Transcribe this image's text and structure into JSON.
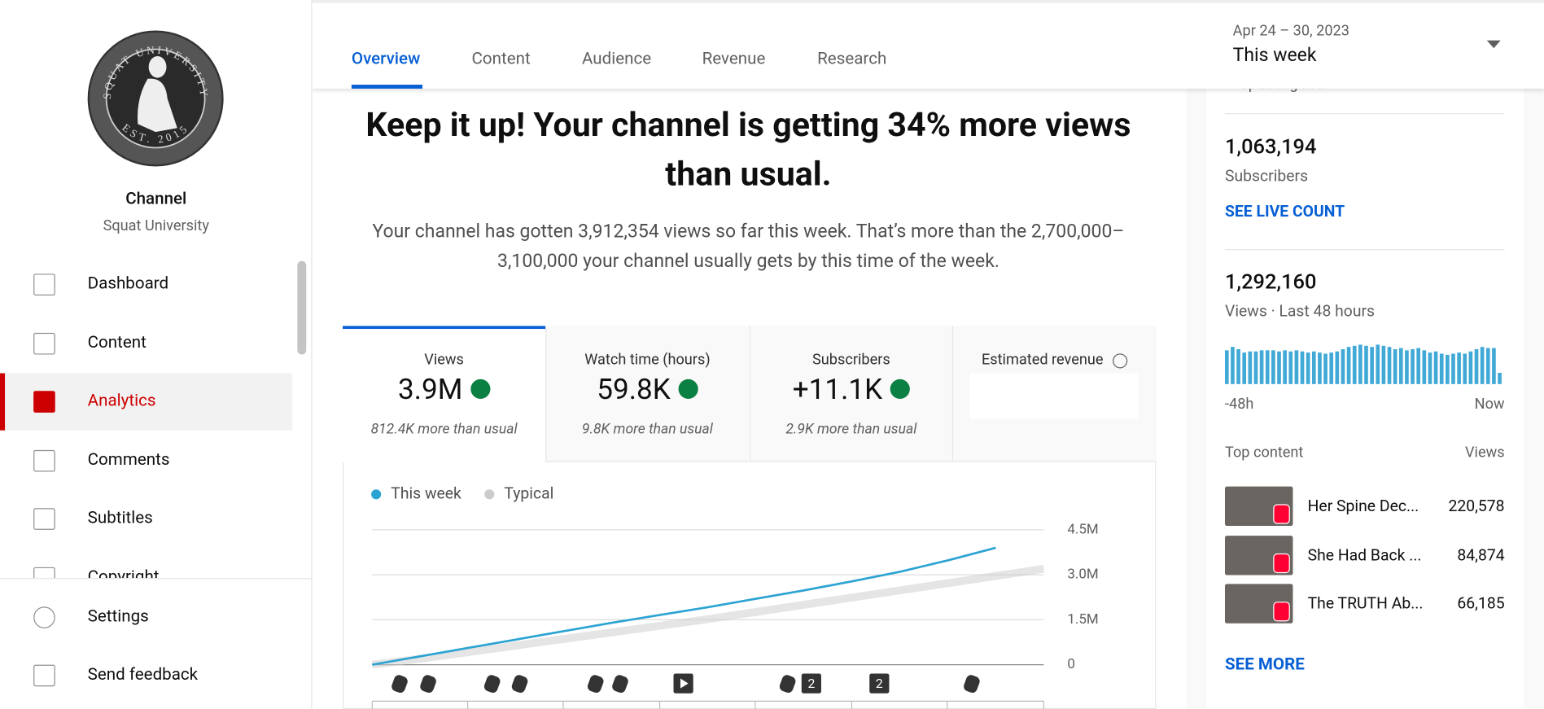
{
  "sidebar": {
    "channel_label": "Channel",
    "channel_name": "Squat University",
    "logo_text": {
      "top": "SQUAT UNIVERSITY",
      "bottom": "EST. 2015"
    },
    "nav": [
      "Dashboard",
      "Content",
      "Analytics",
      "Comments",
      "Subtitles",
      "Copyright"
    ],
    "footer": [
      "Settings",
      "Send feedback"
    ]
  },
  "tabs": [
    "Overview",
    "Content",
    "Audience",
    "Revenue",
    "Research"
  ],
  "date_range": {
    "range": "Apr 24 – 30, 2023",
    "label": "This week"
  },
  "headline": "Keep it up! Your channel is getting 34% more views than usual.",
  "summary": "Your channel has gotten 3,912,354 views so far this week. That’s more than the 2,700,000–3,100,000 your channel usually gets by this time of the week.",
  "metrics": [
    {
      "label": "Views",
      "value": "3.9M",
      "note": "812.4K more than usual"
    },
    {
      "label": "Watch time (hours)",
      "value": "59.8K",
      "note": "9.8K more than usual"
    },
    {
      "label": "Subscribers",
      "value": "+11.1K",
      "note": "2.9K more than usual"
    },
    {
      "label": "Estimated revenue"
    }
  ],
  "upload_badges": [
    "2",
    "2"
  ],
  "realtime": {
    "status": "Updating live",
    "subscribers": "1,063,194",
    "subscribers_label": "Subscribers",
    "live_link": "SEE LIVE COUNT",
    "views": "1,292,160",
    "views_label": "Views · Last 48 hours",
    "x_labels": [
      "-48h",
      "Now"
    ]
  },
  "top_content": {
    "title": "Top content",
    "views_label": "Views",
    "items": [
      {
        "title": "Her Spine Dec...",
        "views": "220,578"
      },
      {
        "title": "She Had Back ...",
        "views": "84,874"
      },
      {
        "title": "The TRUTH Ab...",
        "views": "66,185"
      }
    ],
    "more": "SEE MORE"
  },
  "chart_data": [
    {
      "type": "line",
      "series": [
        {
          "name": "This week",
          "color": "#2ba3d3",
          "values": [
            0,
            280000,
            560000,
            840000,
            1120000,
            1400000,
            1660000,
            1920000,
            2200000,
            2480000,
            2780000,
            3100000,
            3480000,
            3900000,
            null
          ]
        },
        {
          "name": "Typical",
          "color": "#cccccc",
          "values": [
            0,
            200000,
            420000,
            640000,
            860000,
            1080000,
            1300000,
            1520000,
            1760000,
            2000000,
            2240000,
            2480000,
            2720000,
            2960000,
            3200000
          ]
        }
      ],
      "ylim": [
        0,
        4500000
      ],
      "yticks": [
        0,
        {
          "value": 1500000,
          "label": "1.5M"
        },
        {
          "value": 3000000,
          "label": "3.0M"
        },
        {
          "value": 4500000,
          "label": "4.5M"
        }
      ],
      "grid": true
    },
    {
      "type": "bar",
      "color": "#41a9d6",
      "values": [
        30000,
        33000,
        31000,
        28000,
        29000,
        29000,
        30000,
        30000,
        30000,
        29000,
        30000,
        29000,
        30000,
        29000,
        28000,
        29000,
        28000,
        27000,
        28000,
        29000,
        31000,
        33000,
        34000,
        35000,
        34000,
        33000,
        35000,
        34000,
        33000,
        31000,
        32000,
        30000,
        31000,
        32000,
        30000,
        28000,
        29000,
        27000,
        26000,
        27000,
        28000,
        27000,
        29000,
        31000,
        33000,
        32000,
        32000,
        10000
      ]
    }
  ]
}
